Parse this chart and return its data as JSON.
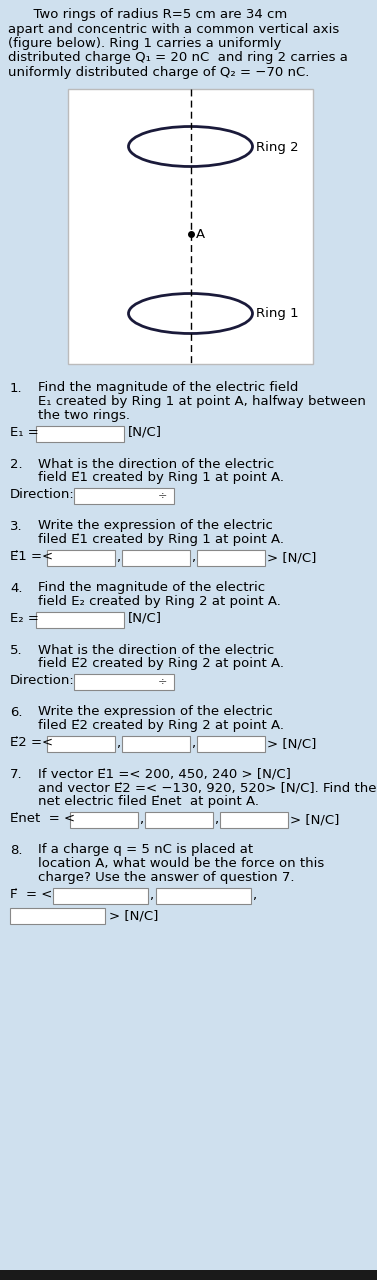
{
  "bg_color": "#cfe0ee",
  "white_color": "#ffffff",
  "text_color": "#000000",
  "ring2_label": "Ring 2",
  "ring1_label": "Ring 1",
  "point_label": "A",
  "title_lines": [
    "      Two rings of radius R=5 cm are 34 cm",
    "apart and concentric with a common vertical axis",
    "(figure below). Ring 1 carries a uniformly",
    "distributed charge Q₁ = 20 nC  and ring 2 carries a",
    "uniformly distributed charge of Q₂ = −70 nC."
  ],
  "q1_num": "1.",
  "q1_text1": "Find the magnitude of the electric field",
  "q1_text2": "E₁ created by Ring 1 at point A, halfway between",
  "q1_text3": "the two rings.",
  "q1_label": "E₁ =",
  "q1_suffix": "[N/C]",
  "q2_num": "2.",
  "q2_text1": "What is the direction of the electric",
  "q2_text2": "field E⃗1 created by Ring 1 at point A.",
  "q2_label": "Direction:",
  "q3_num": "3.",
  "q3_text1": "Write the expression of the electric",
  "q3_text2": "filed E⃗1 created by Ring 1 at point A.",
  "q3_label": "E⃗1 =<",
  "q3_suffix": "> [N/C]",
  "q4_num": "4.",
  "q4_text1": "Find the magnitude of the electric",
  "q4_text2": "field E₂ created by Ring 2 at point A.",
  "q4_label": "E₂ =",
  "q4_suffix": "[N/C]",
  "q5_num": "5.",
  "q5_text1": "What is the direction of the electric",
  "q5_text2": "field E⃗2 created by Ring 2 at point A.",
  "q5_label": "Direction:",
  "q6_num": "6.",
  "q6_text1": "Write the expression of the electric",
  "q6_text2": "filed E⃗2 created by Ring 2 at point A.",
  "q6_label": "E⃗2 =<",
  "q6_suffix": "> [N/C]",
  "q7_num": "7.",
  "q7_text1": "If vector E⃗1 =< 200, 450, 240 > [N/C]",
  "q7_text2": "and vector E⃗2 =< −130, 920, 520> [N/C]. Find the",
  "q7_text3": "net electric filed E⃗net  at point A.",
  "q7_label": "E⃗net  = <",
  "q7_suffix": "> [N/C]",
  "q8_num": "8.",
  "q8_text1": "If a charge q = 5 nC is placed at",
  "q8_text2": "location A, what would be the force on this",
  "q8_text3": "charge? Use the answer of question 7.",
  "q8_label": "F⃗  = <",
  "q8_suffix": "> [N/C]"
}
